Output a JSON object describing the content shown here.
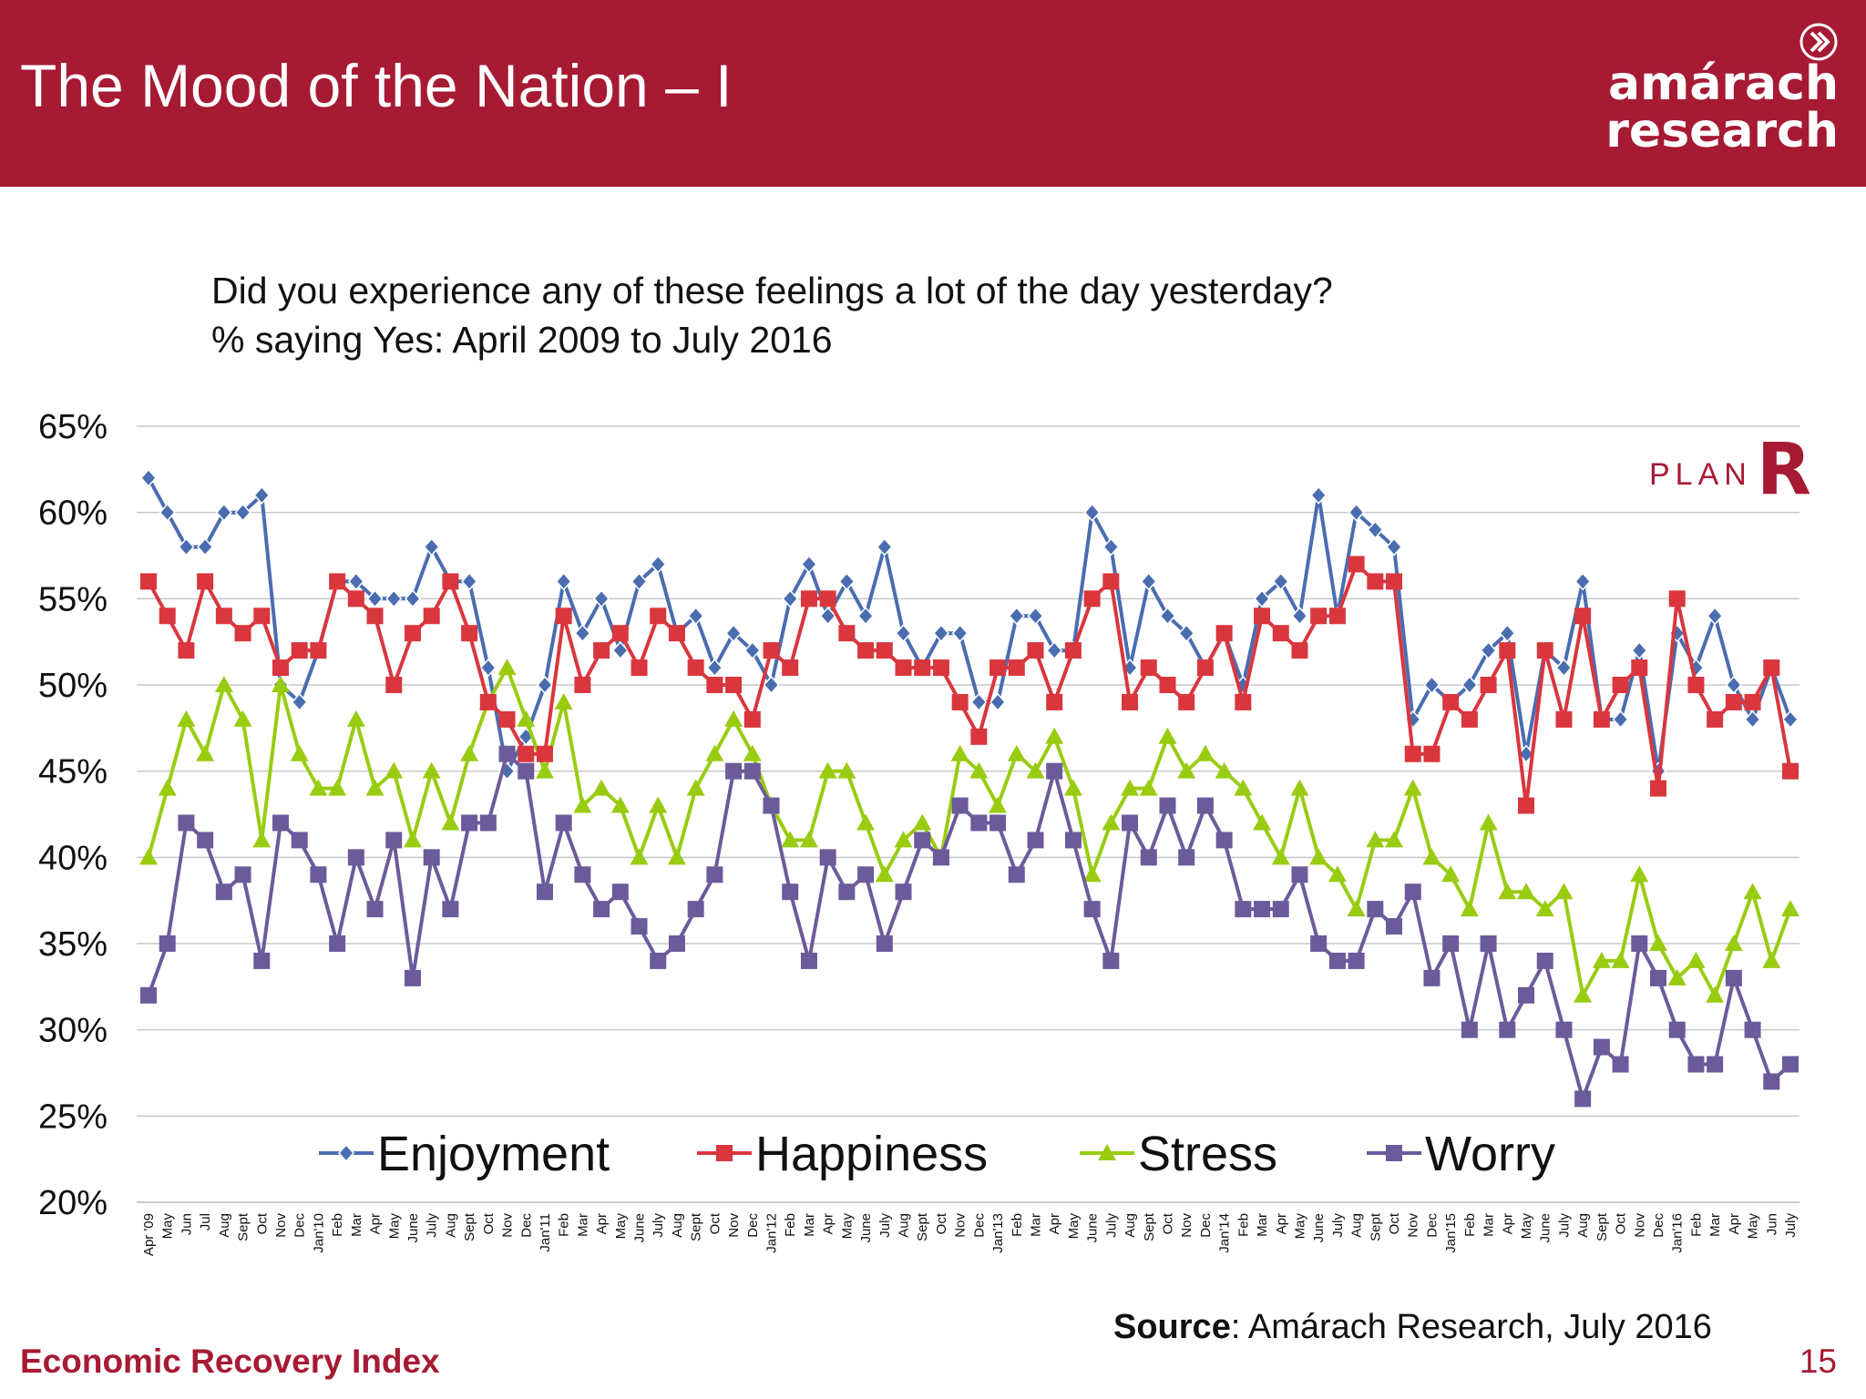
{
  "header": {
    "title": "The Mood of the Nation – I",
    "logo_line1": "amárach",
    "logo_line2": "research",
    "logo_icon": "chevron-circle-icon"
  },
  "question": {
    "line1": "Did you experience any of these feelings a lot of the day yesterday?",
    "line2": "% saying Yes: April 2009 to July 2016"
  },
  "plan_logo": {
    "text": "PLAN",
    "letter": "R"
  },
  "source": {
    "label": "Source",
    "text": ": Amárach Research, July 2016"
  },
  "footer": {
    "left": "Economic Recovery Index",
    "page": "15"
  },
  "colors": {
    "accent": "#a61a34",
    "enjoyment": "#4a6db0",
    "happiness": "#d9363e",
    "stress": "#99cc11",
    "worry": "#6b5b9a"
  },
  "chart_data": {
    "type": "line",
    "title": "",
    "xlabel": "",
    "ylabel": "",
    "ylim": [
      20,
      65
    ],
    "yticks": [
      "20%",
      "25%",
      "30%",
      "35%",
      "40%",
      "45%",
      "50%",
      "55%",
      "60%",
      "65%"
    ],
    "grid": true,
    "legend": "bottom-inside",
    "x": [
      "Apr '09",
      "May",
      "Jun",
      "Jul",
      "Aug",
      "Sept",
      "Oct",
      "Nov",
      "Dec",
      "Jan'10",
      "Feb",
      "Mar",
      "Apr",
      "May",
      "June",
      "July",
      "Aug",
      "Sept",
      "Oct",
      "Nov",
      "Dec",
      "Jan'11",
      "Feb",
      "Mar",
      "Apr",
      "May",
      "June",
      "July",
      "Aug",
      "Sept",
      "Oct",
      "Nov",
      "Dec",
      "Jan'12",
      "Feb",
      "Mar",
      "Apr",
      "May",
      "June",
      "July",
      "Aug",
      "Sept",
      "Oct",
      "Nov",
      "Dec",
      "Jan'13",
      "Feb",
      "Mar",
      "Apr",
      "May",
      "June",
      "July",
      "Aug",
      "Sept",
      "Oct",
      "Nov",
      "Dec",
      "Jan'14",
      "Feb",
      "Mar",
      "Apr",
      "May",
      "June",
      "July",
      "Aug",
      "Sept",
      "Oct",
      "Nov",
      "Dec",
      "Jan'15",
      "Feb",
      "Mar",
      "Apr",
      "May",
      "June",
      "July",
      "Aug",
      "Sept",
      "Oct",
      "Nov",
      "Dec",
      "Jan'16",
      "Feb",
      "Mar",
      "Apr",
      "May",
      "Jun",
      "July"
    ],
    "series": [
      {
        "name": "Enjoyment",
        "marker": "diamond",
        "values": [
          62,
          60,
          58,
          58,
          60,
          60,
          61,
          50,
          49,
          52,
          56,
          56,
          55,
          55,
          55,
          58,
          56,
          56,
          51,
          45,
          47,
          50,
          56,
          53,
          55,
          52,
          56,
          57,
          53,
          54,
          51,
          53,
          52,
          50,
          55,
          57,
          54,
          56,
          54,
          58,
          53,
          51,
          53,
          53,
          49,
          49,
          54,
          54,
          52,
          52,
          60,
          58,
          51,
          56,
          54,
          53,
          51,
          53,
          50,
          55,
          56,
          54,
          61,
          54,
          60,
          59,
          58,
          48,
          50,
          49,
          50,
          52,
          53,
          46,
          52,
          51,
          56,
          48,
          48,
          52,
          45,
          53,
          51,
          54,
          50,
          48,
          51,
          48
        ]
      },
      {
        "name": "Happiness",
        "marker": "square",
        "values": [
          56,
          54,
          52,
          56,
          54,
          53,
          54,
          51,
          52,
          52,
          56,
          55,
          54,
          50,
          53,
          54,
          56,
          53,
          49,
          48,
          46,
          46,
          54,
          50,
          52,
          53,
          51,
          54,
          53,
          51,
          50,
          50,
          48,
          52,
          51,
          55,
          55,
          53,
          52,
          52,
          51,
          51,
          51,
          49,
          47,
          51,
          51,
          52,
          49,
          52,
          55,
          56,
          49,
          51,
          50,
          49,
          51,
          53,
          49,
          54,
          53,
          52,
          54,
          54,
          57,
          56,
          56,
          46,
          46,
          49,
          48,
          50,
          52,
          43,
          52,
          48,
          54,
          48,
          50,
          51,
          44,
          55,
          50,
          48,
          49,
          49,
          51,
          45
        ]
      },
      {
        "name": "Stress",
        "marker": "triangle",
        "values": [
          40,
          44,
          48,
          46,
          50,
          48,
          41,
          50,
          46,
          44,
          44,
          48,
          44,
          45,
          41,
          45,
          42,
          46,
          49,
          51,
          48,
          45,
          49,
          43,
          44,
          43,
          40,
          43,
          40,
          44,
          46,
          48,
          46,
          43,
          41,
          41,
          45,
          45,
          42,
          39,
          41,
          42,
          40,
          46,
          45,
          43,
          46,
          45,
          47,
          44,
          39,
          42,
          44,
          44,
          47,
          45,
          46,
          45,
          44,
          42,
          40,
          44,
          40,
          39,
          37,
          41,
          41,
          44,
          40,
          39,
          37,
          42,
          38,
          38,
          37,
          38,
          32,
          34,
          34,
          39,
          35,
          33,
          34,
          32,
          35,
          38,
          34,
          37
        ]
      },
      {
        "name": "Worry",
        "marker": "square",
        "values": [
          32,
          35,
          42,
          41,
          38,
          39,
          34,
          42,
          41,
          39,
          35,
          40,
          37,
          41,
          33,
          40,
          37,
          42,
          42,
          46,
          45,
          38,
          42,
          39,
          37,
          38,
          36,
          34,
          35,
          37,
          39,
          45,
          45,
          43,
          38,
          34,
          40,
          38,
          39,
          35,
          38,
          41,
          40,
          43,
          42,
          42,
          39,
          41,
          45,
          41,
          37,
          34,
          42,
          40,
          43,
          40,
          43,
          41,
          37,
          37,
          37,
          39,
          35,
          34,
          34,
          37,
          36,
          38,
          33,
          35,
          30,
          35,
          30,
          32,
          34,
          30,
          26,
          29,
          28,
          35,
          33,
          30,
          28,
          28,
          33,
          30,
          27,
          28
        ]
      }
    ]
  }
}
